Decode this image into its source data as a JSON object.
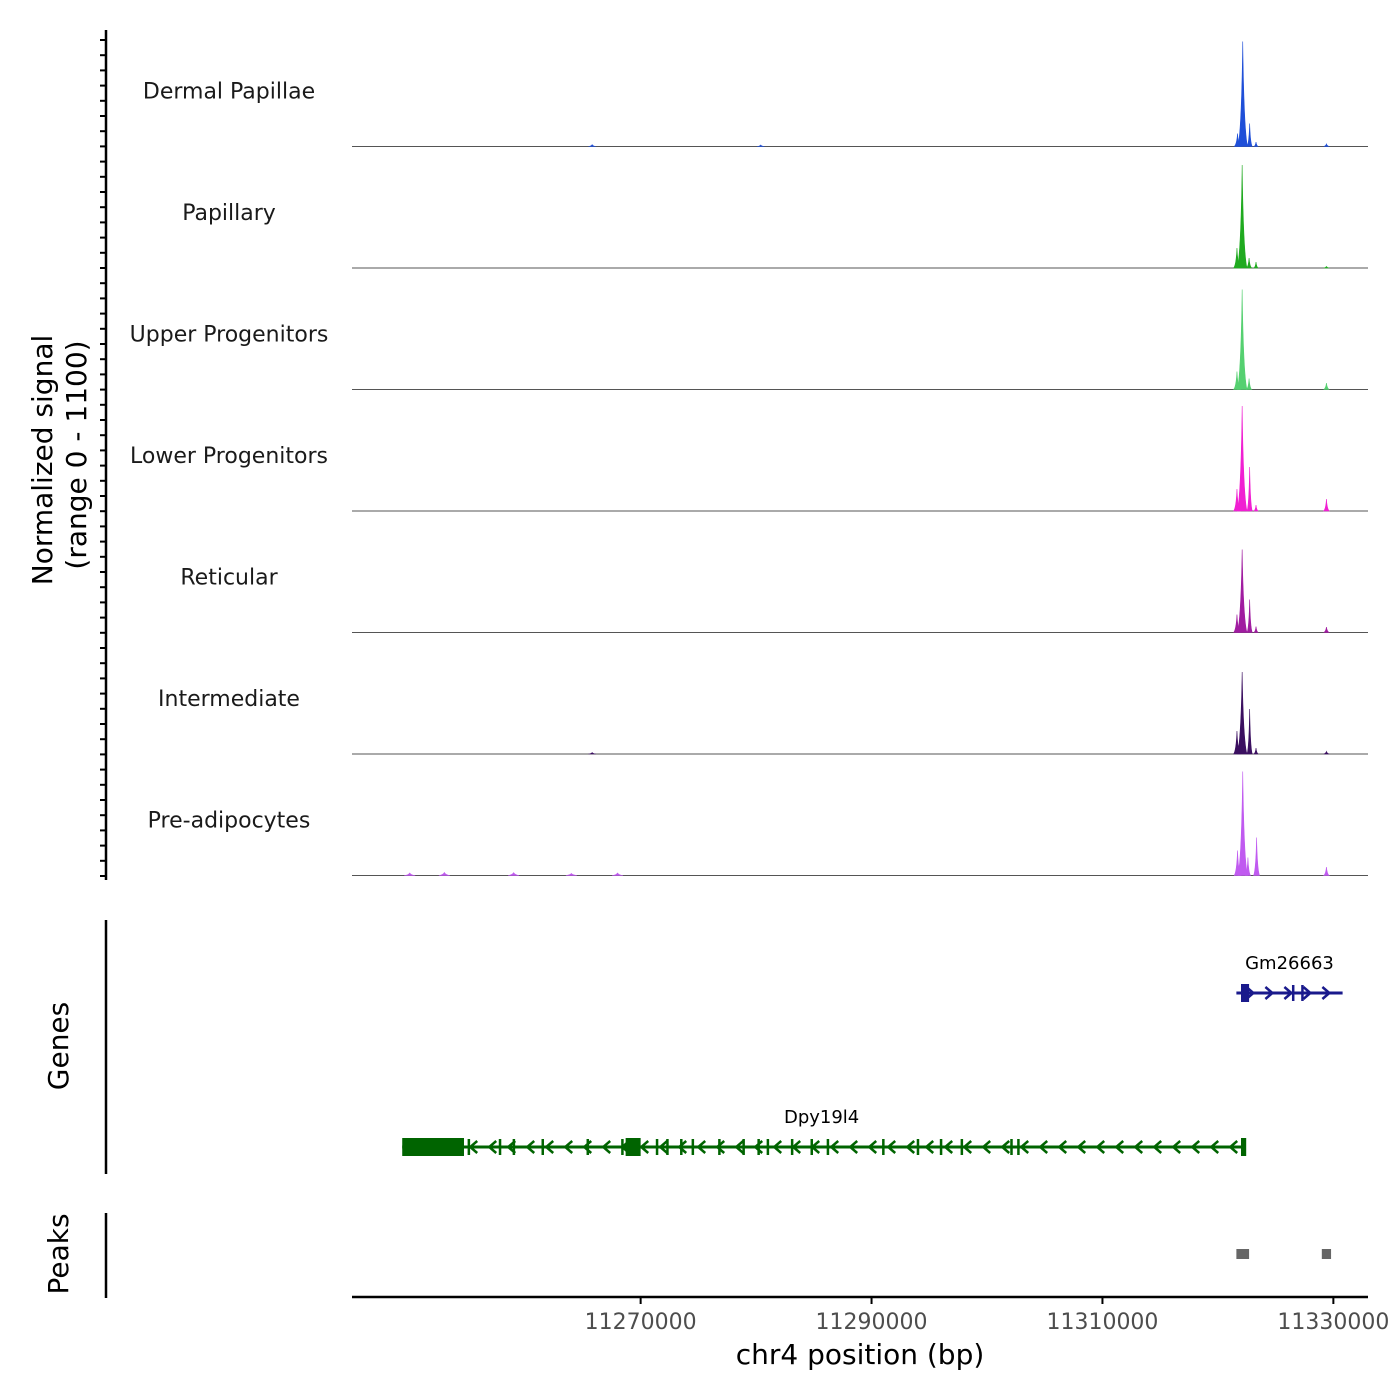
{
  "chart_data": {
    "type": "area",
    "title": "",
    "chromosome": "chr4",
    "xlabel": "chr4 position (bp)",
    "ylabel_line1": "Normalized signal",
    "ylabel_line2": "(range 0 - 1100)",
    "xlim": [
      11245000,
      11333000
    ],
    "ylim": [
      0,
      1100
    ],
    "x_ticks": [
      11270000,
      11290000,
      11310000,
      11330000
    ],
    "x_tick_labels": [
      "11270000",
      "11290000",
      "11310000",
      "11330000"
    ],
    "coverage_tracks": [
      {
        "name": "Dermal Papillae",
        "color": "#1F4FD8",
        "peaks": [
          {
            "pos": 11322150,
            "width": 260,
            "value": 1050
          },
          {
            "pos": 11321700,
            "width": 180,
            "value": 130
          },
          {
            "pos": 11322750,
            "width": 140,
            "value": 230
          },
          {
            "pos": 11323300,
            "width": 120,
            "value": 45
          },
          {
            "pos": 11329400,
            "width": 150,
            "value": 25
          },
          {
            "pos": 11265800,
            "width": 200,
            "value": 18
          },
          {
            "pos": 11280400,
            "width": 200,
            "value": 15
          }
        ]
      },
      {
        "name": "Papillary",
        "color": "#1FAA1F",
        "peaks": [
          {
            "pos": 11322100,
            "width": 260,
            "value": 1030
          },
          {
            "pos": 11321650,
            "width": 180,
            "value": 200
          },
          {
            "pos": 11322700,
            "width": 140,
            "value": 100
          },
          {
            "pos": 11323300,
            "width": 120,
            "value": 60
          },
          {
            "pos": 11329400,
            "width": 150,
            "value": 15
          }
        ]
      },
      {
        "name": "Upper Progenitors",
        "color": "#55D070",
        "peaks": [
          {
            "pos": 11322100,
            "width": 260,
            "value": 1000
          },
          {
            "pos": 11321650,
            "width": 180,
            "value": 180
          },
          {
            "pos": 11322700,
            "width": 140,
            "value": 110
          },
          {
            "pos": 11329400,
            "width": 150,
            "value": 65
          }
        ]
      },
      {
        "name": "Lower Progenitors",
        "color": "#F01FD2",
        "peaks": [
          {
            "pos": 11322100,
            "width": 260,
            "value": 1050
          },
          {
            "pos": 11321650,
            "width": 180,
            "value": 220
          },
          {
            "pos": 11322750,
            "width": 140,
            "value": 440
          },
          {
            "pos": 11323300,
            "width": 120,
            "value": 60
          },
          {
            "pos": 11329400,
            "width": 150,
            "value": 120
          }
        ]
      },
      {
        "name": "Reticular",
        "color": "#A01CA0",
        "peaks": [
          {
            "pos": 11322100,
            "width": 260,
            "value": 830
          },
          {
            "pos": 11321650,
            "width": 180,
            "value": 180
          },
          {
            "pos": 11322750,
            "width": 140,
            "value": 330
          },
          {
            "pos": 11323300,
            "width": 120,
            "value": 60
          },
          {
            "pos": 11329400,
            "width": 150,
            "value": 55
          }
        ]
      },
      {
        "name": "Intermediate",
        "color": "#3B0F60",
        "peaks": [
          {
            "pos": 11322100,
            "width": 260,
            "value": 820
          },
          {
            "pos": 11321650,
            "width": 180,
            "value": 230
          },
          {
            "pos": 11322750,
            "width": 140,
            "value": 450
          },
          {
            "pos": 11323300,
            "width": 120,
            "value": 60
          },
          {
            "pos": 11329400,
            "width": 150,
            "value": 25
          },
          {
            "pos": 11265800,
            "width": 200,
            "value": 15
          }
        ]
      },
      {
        "name": "Pre-adipocytes",
        "color": "#C05AF0",
        "peaks": [
          {
            "pos": 11322150,
            "width": 260,
            "value": 1040
          },
          {
            "pos": 11321700,
            "width": 180,
            "value": 250
          },
          {
            "pos": 11322600,
            "width": 140,
            "value": 180
          },
          {
            "pos": 11323350,
            "width": 160,
            "value": 380
          },
          {
            "pos": 11329400,
            "width": 150,
            "value": 85
          },
          {
            "pos": 11250000,
            "width": 300,
            "value": 25
          },
          {
            "pos": 11253000,
            "width": 300,
            "value": 30
          },
          {
            "pos": 11259000,
            "width": 300,
            "value": 28
          },
          {
            "pos": 11264000,
            "width": 300,
            "value": 20
          },
          {
            "pos": 11268000,
            "width": 300,
            "value": 25
          }
        ]
      }
    ],
    "genes": [
      {
        "name": "Dpy19l4",
        "strand": "-",
        "color": "#006400",
        "start": 11249350,
        "end": 11322000,
        "exons": [
          [
            11249350,
            11254700
          ],
          [
            11268700,
            11270000
          ],
          [
            11322000,
            11322450
          ]
        ],
        "small_exons": [
          11255100,
          11257800,
          11259000,
          11261500,
          11265400,
          11268400,
          11269800,
          11271400,
          11272300,
          11273500,
          11274500,
          11276800,
          11278900,
          11280200,
          11281000,
          11283100,
          11284800,
          11286200,
          11291000,
          11294000,
          11296000,
          11297800,
          11302100,
          11302700
        ]
      },
      {
        "name": "Gm26663",
        "strand": "+",
        "color": "#1A1A8C",
        "start": 11321600,
        "end": 11330800,
        "exons": [
          [
            11322000,
            11322700
          ]
        ],
        "small_exons": [
          11326500,
          11327300
        ]
      }
    ],
    "peaks_track": {
      "color": "#666666",
      "regions": [
        [
          11321600,
          11322700
        ],
        [
          11329000,
          11329800
        ]
      ]
    },
    "panel_labels": [
      "Genes",
      "Peaks"
    ]
  }
}
